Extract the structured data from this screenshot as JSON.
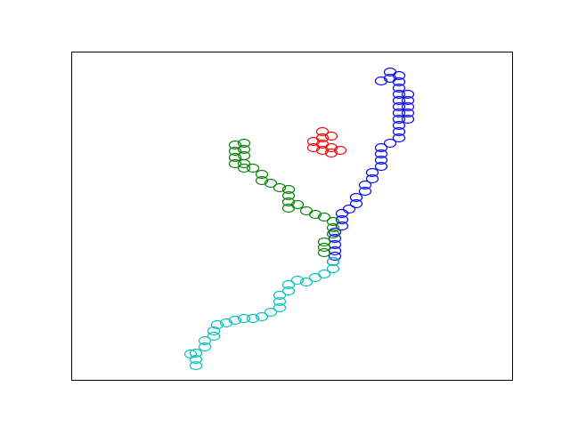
{
  "chart_data": {
    "type": "scatter",
    "marker": "open-ellipse",
    "axes_visible": false,
    "grid": false,
    "legend": "none",
    "xlim": [
      0,
      495
    ],
    "ylim": [
      0,
      369
    ],
    "series": [
      {
        "color": "#0000ff",
        "points": [
          [
            348,
            336
          ],
          [
            358,
            346
          ],
          [
            358,
            339
          ],
          [
            368,
            342
          ],
          [
            368,
            335
          ],
          [
            368,
            328
          ],
          [
            368,
            321
          ],
          [
            368,
            314
          ],
          [
            378,
            321
          ],
          [
            378,
            314
          ],
          [
            378,
            307
          ],
          [
            378,
            300
          ],
          [
            378,
            293
          ],
          [
            368,
            307
          ],
          [
            368,
            300
          ],
          [
            368,
            293
          ],
          [
            368,
            286
          ],
          [
            368,
            279
          ],
          [
            368,
            272
          ],
          [
            358,
            266
          ],
          [
            348,
            261
          ],
          [
            348,
            254
          ],
          [
            348,
            247
          ],
          [
            348,
            240
          ],
          [
            338,
            233
          ],
          [
            338,
            226
          ],
          [
            330,
            219
          ],
          [
            330,
            212
          ],
          [
            320,
            205
          ],
          [
            320,
            198
          ],
          [
            312,
            192
          ],
          [
            304,
            187
          ],
          [
            304,
            180
          ],
          [
            304,
            173
          ],
          [
            296,
            166
          ],
          [
            296,
            159
          ],
          [
            296,
            152
          ],
          [
            296,
            145
          ],
          [
            296,
            139
          ],
          [
            294,
            133
          ]
        ]
      },
      {
        "color": "#ff0000",
        "points": [
          [
            282,
            279
          ],
          [
            292,
            274
          ],
          [
            282,
            272
          ],
          [
            272,
            268
          ],
          [
            282,
            265
          ],
          [
            292,
            261
          ],
          [
            272,
            261
          ],
          [
            282,
            258
          ],
          [
            302,
            258
          ],
          [
            292,
            255
          ]
        ]
      },
      {
        "color": "#008000",
        "points": [
          [
            184,
            264
          ],
          [
            194,
            266
          ],
          [
            194,
            259
          ],
          [
            184,
            257
          ],
          [
            194,
            252
          ],
          [
            184,
            250
          ],
          [
            184,
            243
          ],
          [
            194,
            243
          ],
          [
            204,
            238
          ],
          [
            194,
            238
          ],
          [
            214,
            231
          ],
          [
            214,
            224
          ],
          [
            224,
            221
          ],
          [
            234,
            216
          ],
          [
            244,
            214
          ],
          [
            244,
            207
          ],
          [
            244,
            200
          ],
          [
            254,
            197
          ],
          [
            244,
            193
          ],
          [
            264,
            190
          ],
          [
            274,
            186
          ],
          [
            284,
            183
          ],
          [
            294,
            178
          ],
          [
            294,
            171
          ],
          [
            294,
            164
          ],
          [
            284,
            155
          ],
          [
            284,
            149
          ],
          [
            284,
            143
          ]
        ]
      },
      {
        "color": "#00bfbf",
        "points": [
          [
            294,
            133
          ],
          [
            294,
            125
          ],
          [
            284,
            119
          ],
          [
            274,
            115
          ],
          [
            264,
            110
          ],
          [
            254,
            112
          ],
          [
            244,
            107
          ],
          [
            244,
            100
          ],
          [
            234,
            95
          ],
          [
            234,
            88
          ],
          [
            234,
            81
          ],
          [
            224,
            76
          ],
          [
            214,
            71
          ],
          [
            204,
            69
          ],
          [
            194,
            69
          ],
          [
            184,
            67
          ],
          [
            174,
            64
          ],
          [
            164,
            62
          ],
          [
            160,
            55
          ],
          [
            160,
            49
          ],
          [
            150,
            44
          ],
          [
            150,
            37
          ],
          [
            140,
            30
          ],
          [
            140,
            23
          ],
          [
            134,
            29
          ],
          [
            140,
            16
          ]
        ]
      }
    ]
  }
}
